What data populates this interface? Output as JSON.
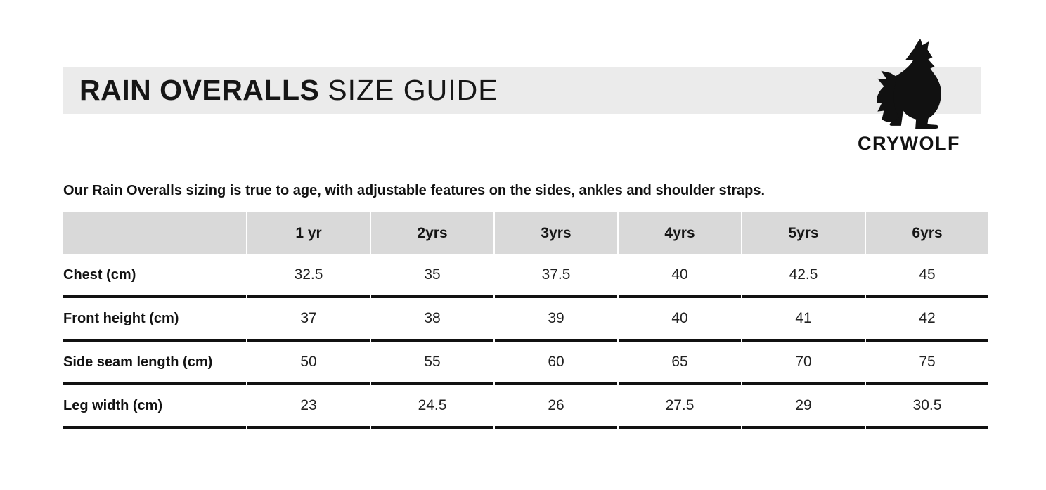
{
  "header": {
    "title_bold": "RAIN OVERALLS",
    "title_light": "SIZE GUIDE",
    "brand": "CRYWOLF"
  },
  "intro": "Our Rain Overalls sizing is true to age, with adjustable features on the sides, ankles and shoulder straps.",
  "size_table": {
    "columns": [
      "1 yr",
      "2yrs",
      "3yrs",
      "4yrs",
      "5yrs",
      "6yrs"
    ],
    "rows": [
      {
        "label": "Chest (cm)",
        "values": [
          "32.5",
          "35",
          "37.5",
          "40",
          "42.5",
          "45"
        ]
      },
      {
        "label": "Front height (cm)",
        "values": [
          "37",
          "38",
          "39",
          "40",
          "41",
          "42"
        ]
      },
      {
        "label": "Side seam length (cm)",
        "values": [
          "50",
          "55",
          "60",
          "65",
          "70",
          "75"
        ]
      },
      {
        "label": "Leg width (cm)",
        "values": [
          "23",
          "24.5",
          "26",
          "27.5",
          "29",
          "30.5"
        ]
      }
    ]
  },
  "colors": {
    "banner_bg": "#ebebeb",
    "table_header_bg": "#d9d9d9",
    "ink": "#111111"
  }
}
